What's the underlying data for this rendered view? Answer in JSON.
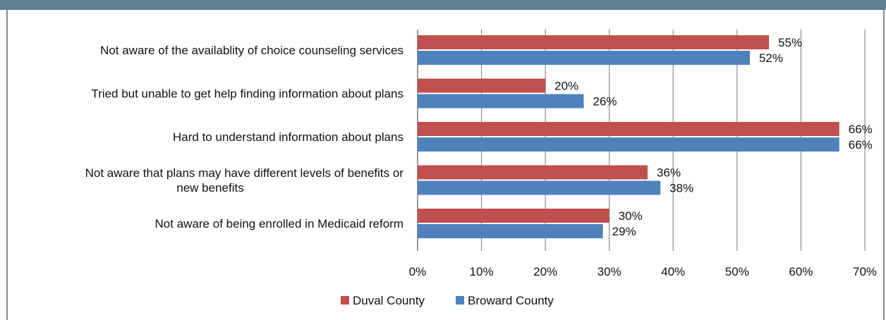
{
  "chart_data": {
    "type": "bar",
    "orientation": "horizontal",
    "categories": [
      [
        "Not aware  of the availablity  of choice counseling services"
      ],
      [
        "Tried but unable to get help finding information about plans"
      ],
      [
        "Hard to understand information  about plans"
      ],
      [
        "Not aware  that plans may have different levels of benefits or",
        "new benefits"
      ],
      [
        "Not aware  of being enrolled in Medicaid reform"
      ]
    ],
    "series": [
      {
        "name": "Duval County",
        "color": "#c0504d",
        "values": [
          55,
          20,
          66,
          36,
          30
        ],
        "labels": [
          "55%",
          "20%",
          "66%",
          "36%",
          "30%"
        ]
      },
      {
        "name": "Broward County",
        "color": "#4f81bd",
        "values": [
          52,
          26,
          66,
          38,
          29
        ],
        "labels": [
          "52%",
          "26%",
          "66%",
          "38%",
          "29%"
        ]
      }
    ],
    "xlim": [
      0,
      70
    ],
    "xticks": [
      0,
      10,
      20,
      30,
      40,
      50,
      60,
      70
    ],
    "xtick_labels": [
      "0%",
      "10%",
      "20%",
      "30%",
      "40%",
      "50%",
      "60%",
      "70%"
    ],
    "grid": true,
    "legend_position": "bottom"
  }
}
